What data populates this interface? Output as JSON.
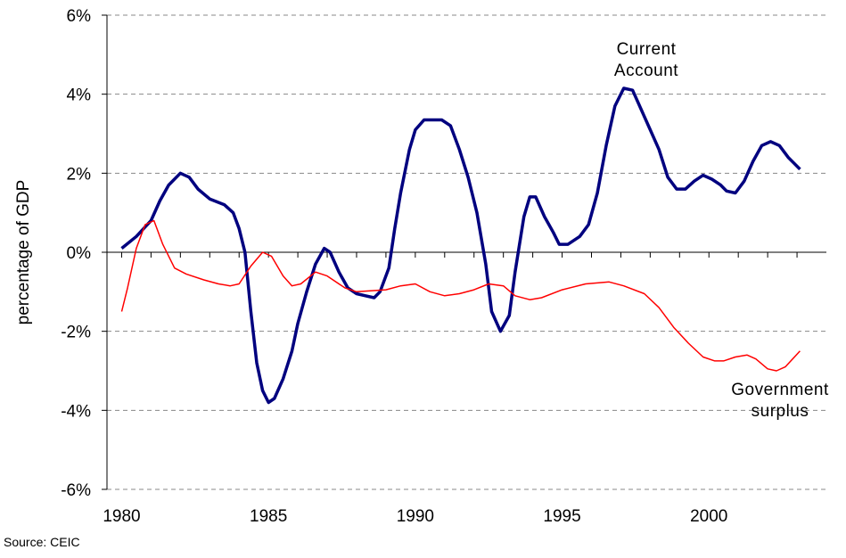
{
  "chart_data": {
    "type": "line",
    "y_label": "percentage of GDP",
    "source": "Source: CEIC",
    "xlim": [
      1979.5,
      2004
    ],
    "xticks": [
      1980,
      1985,
      1990,
      1995,
      2000
    ],
    "xminorticks": [
      1980,
      1981,
      1982,
      1983,
      1984,
      1985,
      1986,
      1987,
      1988,
      1989,
      1990,
      1991,
      1992,
      1993,
      1994,
      1995,
      1996,
      1997,
      1998,
      1999,
      2000,
      2001,
      2002,
      2003
    ],
    "ylim": [
      -6,
      6
    ],
    "yticks": [
      {
        "value": -6,
        "label": "-6%"
      },
      {
        "value": -4,
        "label": "-4%"
      },
      {
        "value": -2,
        "label": "-2%"
      },
      {
        "value": 0,
        "label": "0%"
      },
      {
        "value": 2,
        "label": "2%"
      },
      {
        "value": 4,
        "label": "4%"
      },
      {
        "value": 6,
        "label": "6%"
      }
    ],
    "grid": true,
    "series": [
      {
        "name": "Current Account",
        "color": "#00007f",
        "width": 3.5,
        "x": [
          1980,
          1980.5,
          1981,
          1981.3,
          1981.6,
          1982,
          1982.3,
          1982.6,
          1983,
          1983.5,
          1983.8,
          1984,
          1984.2,
          1984.4,
          1984.6,
          1984.8,
          1985,
          1985.2,
          1985.5,
          1985.8,
          1986,
          1986.3,
          1986.6,
          1986.9,
          1987.1,
          1987.4,
          1987.7,
          1988,
          1988.3,
          1988.6,
          1988.8,
          1989.1,
          1989.3,
          1989.5,
          1989.8,
          1990,
          1990.3,
          1990.6,
          1990.9,
          1991.2,
          1991.5,
          1991.8,
          1992.1,
          1992.4,
          1992.6,
          1992.9,
          1993.2,
          1993.4,
          1993.7,
          1993.9,
          1994.1,
          1994.4,
          1994.7,
          1994.9,
          1995.2,
          1995.6,
          1995.9,
          1996.2,
          1996.5,
          1996.8,
          1997.1,
          1997.4,
          1997.7,
          1998,
          1998.3,
          1998.6,
          1998.9,
          1999.2,
          1999.5,
          1999.8,
          2000.1,
          2000.4,
          2000.6,
          2000.9,
          2001.2,
          2001.5,
          2001.8,
          2002.1,
          2002.4,
          2002.7,
          2003.1
        ],
        "values": [
          0.1,
          0.4,
          0.8,
          1.3,
          1.7,
          2.0,
          1.9,
          1.6,
          1.35,
          1.2,
          1.0,
          0.6,
          0,
          -1.5,
          -2.8,
          -3.5,
          -3.8,
          -3.7,
          -3.2,
          -2.5,
          -1.8,
          -1.0,
          -0.3,
          0.1,
          0.0,
          -0.5,
          -0.9,
          -1.05,
          -1.1,
          -1.15,
          -1.0,
          -0.4,
          0.6,
          1.5,
          2.6,
          3.1,
          3.35,
          3.35,
          3.35,
          3.2,
          2.6,
          1.9,
          1.0,
          -0.3,
          -1.5,
          -2.0,
          -1.6,
          -0.5,
          0.9,
          1.4,
          1.4,
          0.9,
          0.5,
          0.2,
          0.2,
          0.4,
          0.7,
          1.5,
          2.7,
          3.7,
          4.15,
          4.1,
          3.6,
          3.1,
          2.6,
          1.9,
          1.6,
          1.6,
          1.8,
          1.95,
          1.85,
          1.7,
          1.55,
          1.5,
          1.8,
          2.3,
          2.7,
          2.8,
          2.7,
          2.4,
          2.1
        ]
      },
      {
        "name": "Government surplus",
        "color": "#ff0000",
        "width": 1.5,
        "x": [
          1980,
          1980.2,
          1980.5,
          1980.8,
          1981.1,
          1981.4,
          1981.8,
          1982.2,
          1982.8,
          1983.3,
          1983.7,
          1984,
          1984.4,
          1984.8,
          1985.1,
          1985.5,
          1985.8,
          1986.1,
          1986.6,
          1987,
          1987.6,
          1988,
          1989,
          1989.5,
          1990,
          1990.5,
          1991,
          1991.5,
          1992,
          1992.5,
          1993,
          1993.4,
          1993.9,
          1994.3,
          1995,
          1995.8,
          1996.6,
          1997.1,
          1997.8,
          1998.3,
          1998.8,
          1999.3,
          1999.8,
          2000.2,
          2000.5,
          2000.9,
          2001.3,
          2001.6,
          2002,
          2002.3,
          2002.6,
          2003.1
        ],
        "values": [
          -1.5,
          -0.9,
          0.1,
          0.7,
          0.8,
          0.2,
          -0.4,
          -0.55,
          -0.7,
          -0.8,
          -0.85,
          -0.8,
          -0.35,
          0,
          -0.1,
          -0.6,
          -0.85,
          -0.8,
          -0.5,
          -0.6,
          -0.9,
          -1.0,
          -0.95,
          -0.85,
          -0.8,
          -1.0,
          -1.1,
          -1.05,
          -0.95,
          -0.8,
          -0.85,
          -1.1,
          -1.2,
          -1.15,
          -0.95,
          -0.8,
          -0.75,
          -0.85,
          -1.05,
          -1.4,
          -1.9,
          -2.3,
          -2.65,
          -2.75,
          -2.75,
          -2.65,
          -2.6,
          -2.7,
          -2.95,
          -3.0,
          -2.9,
          -2.5
        ]
      }
    ]
  }
}
